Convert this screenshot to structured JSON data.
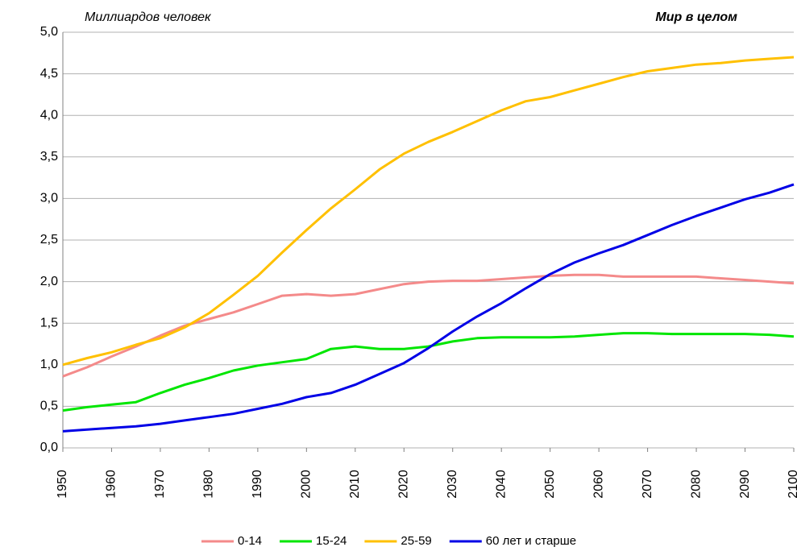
{
  "chart_data": {
    "type": "line",
    "subtitle": "Миллиардов человек",
    "title": "Мир в целом",
    "x": [
      1950,
      1955,
      1960,
      1965,
      1970,
      1975,
      1980,
      1985,
      1990,
      1995,
      2000,
      2005,
      2010,
      2015,
      2020,
      2025,
      2030,
      2035,
      2040,
      2045,
      2050,
      2055,
      2060,
      2065,
      2070,
      2075,
      2080,
      2085,
      2090,
      2095,
      2100
    ],
    "xlim": [
      1950,
      2100
    ],
    "xticks": [
      1950,
      1960,
      1970,
      1980,
      1990,
      2000,
      2010,
      2020,
      2030,
      2040,
      2050,
      2060,
      2070,
      2080,
      2090,
      2100
    ],
    "ylim": [
      0,
      5
    ],
    "yticks": [
      {
        "value": 0,
        "label": "0,0"
      },
      {
        "value": 0.5,
        "label": "0,5"
      },
      {
        "value": 1,
        "label": "1,0"
      },
      {
        "value": 1.5,
        "label": "1,5"
      },
      {
        "value": 2,
        "label": "2,0"
      },
      {
        "value": 2.5,
        "label": "2,5"
      },
      {
        "value": 3,
        "label": "3,0"
      },
      {
        "value": 3.5,
        "label": "3,5"
      },
      {
        "value": 4,
        "label": "4,0"
      },
      {
        "value": 4.5,
        "label": "4,5"
      },
      {
        "value": 5,
        "label": "5,0"
      }
    ],
    "grid": true,
    "legend": "bottom",
    "series": [
      {
        "name": "0-14",
        "color": "#f48a8a",
        "values": [
          0.86,
          0.97,
          1.1,
          1.22,
          1.35,
          1.47,
          1.55,
          1.63,
          1.73,
          1.83,
          1.85,
          1.83,
          1.85,
          1.91,
          1.97,
          2.0,
          2.01,
          2.01,
          2.03,
          2.05,
          2.07,
          2.08,
          2.08,
          2.06,
          2.06,
          2.06,
          2.06,
          2.04,
          2.02,
          2.0,
          1.98
        ]
      },
      {
        "name": "15-24",
        "color": "#00e600",
        "values": [
          0.45,
          0.49,
          0.52,
          0.55,
          0.66,
          0.76,
          0.84,
          0.93,
          0.99,
          1.03,
          1.07,
          1.19,
          1.22,
          1.19,
          1.19,
          1.22,
          1.28,
          1.32,
          1.33,
          1.33,
          1.33,
          1.34,
          1.36,
          1.38,
          1.38,
          1.37,
          1.37,
          1.37,
          1.37,
          1.36,
          1.34
        ]
      },
      {
        "name": "25-59",
        "color": "#ffc000",
        "values": [
          1.0,
          1.08,
          1.15,
          1.24,
          1.32,
          1.45,
          1.62,
          1.84,
          2.07,
          2.35,
          2.62,
          2.88,
          3.11,
          3.35,
          3.54,
          3.68,
          3.8,
          3.93,
          4.06,
          4.17,
          4.22,
          4.3,
          4.38,
          4.46,
          4.53,
          4.57,
          4.61,
          4.63,
          4.66,
          4.68,
          4.7
        ]
      },
      {
        "name": "60 лет и старше",
        "color": "#0000e6",
        "values": [
          0.2,
          0.22,
          0.24,
          0.26,
          0.29,
          0.33,
          0.37,
          0.41,
          0.47,
          0.53,
          0.61,
          0.66,
          0.76,
          0.89,
          1.02,
          1.2,
          1.4,
          1.58,
          1.74,
          1.92,
          2.09,
          2.23,
          2.34,
          2.44,
          2.56,
          2.68,
          2.79,
          2.89,
          2.99,
          3.07,
          3.17
        ]
      }
    ]
  }
}
